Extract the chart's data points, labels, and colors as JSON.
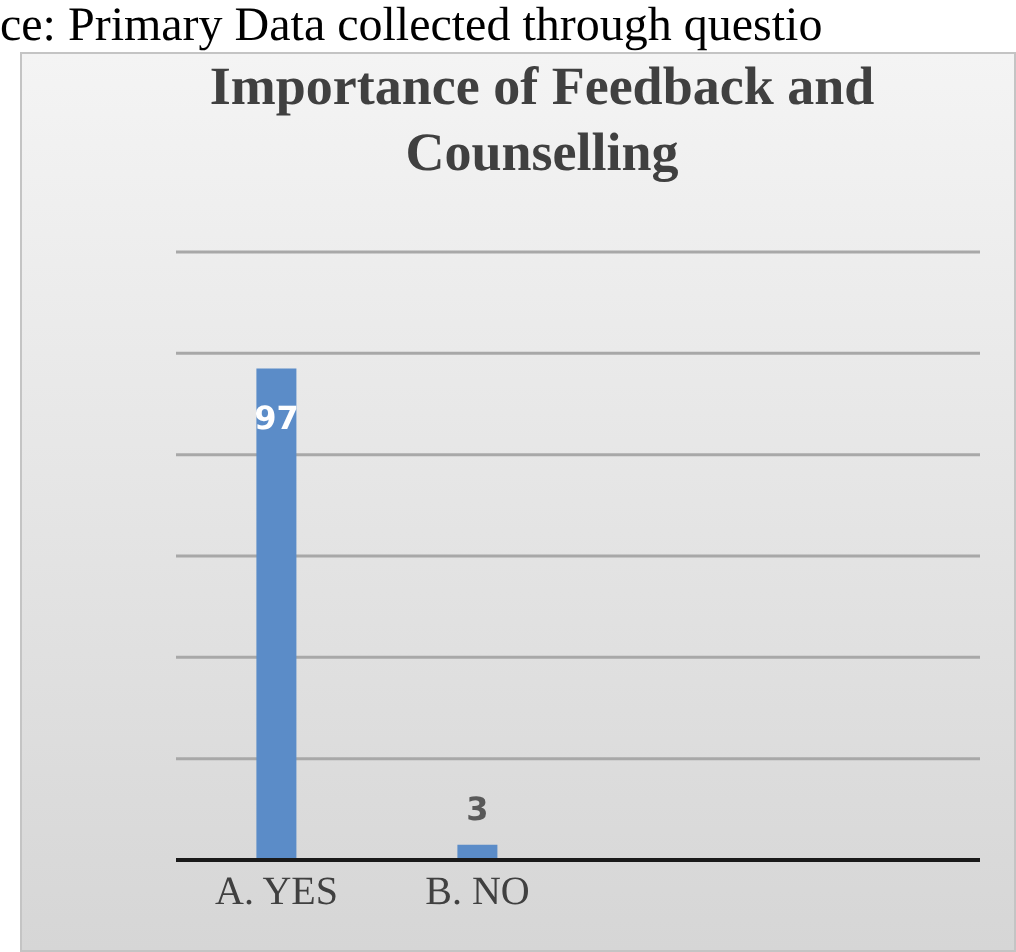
{
  "chart_data": {
    "type": "bar",
    "title": "Importance of Feedback and Counselling",
    "annotations": [
      "ce: Primary Data collected through questio"
    ],
    "categories": [
      "A. YES",
      "B. NO",
      null,
      null
    ],
    "values": [
      97,
      3,
      null,
      null
    ],
    "color": "#5b8cc8",
    "ylim": [
      0,
      120
    ],
    "yticks": [
      {
        "value": 0,
        "label": null
      },
      {
        "value": 20,
        "label": null
      },
      {
        "value": 40,
        "label": null
      },
      {
        "value": 60,
        "label": null
      },
      {
        "value": 80,
        "label": null
      },
      {
        "value": 100,
        "label": null
      },
      {
        "value": 120,
        "label": null
      }
    ],
    "grid": "y",
    "tick_labels": "x",
    "data_labels": true
  }
}
